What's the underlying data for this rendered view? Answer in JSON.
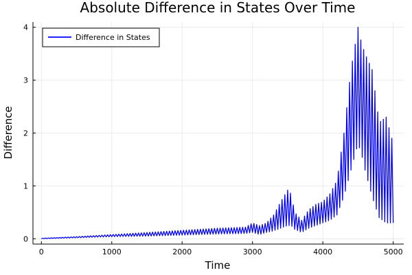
{
  "chart_data": {
    "type": "line",
    "title": "Absolute Difference in States Over Time",
    "xlabel": "Time",
    "ylabel": "Difference",
    "xlim": [
      -120,
      5150
    ],
    "ylim": [
      -0.1,
      4.1
    ],
    "xticks": [
      0,
      1000,
      2000,
      3000,
      4000,
      5000
    ],
    "yticks": [
      0,
      1,
      2,
      3,
      4
    ],
    "grid": true,
    "legend": {
      "placement": "top-left",
      "entries": [
        "Difference in States"
      ]
    },
    "series": [
      {
        "name": "Difference in States",
        "color": "#0000ff",
        "oscillation_period": 40,
        "envelope_x": [
          0,
          500,
          1000,
          1500,
          2000,
          2500,
          2900,
          3000,
          3100,
          3200,
          3300,
          3400,
          3500,
          3550,
          3600,
          3700,
          3800,
          3900,
          4000,
          4100,
          4200,
          4300,
          4400,
          4500,
          4550,
          4600,
          4700,
          4800,
          4900,
          5000
        ],
        "envelope_upper": [
          0.01,
          0.04,
          0.08,
          0.12,
          0.16,
          0.2,
          0.22,
          0.3,
          0.25,
          0.3,
          0.45,
          0.7,
          0.92,
          0.85,
          0.5,
          0.35,
          0.55,
          0.65,
          0.7,
          0.85,
          1.1,
          2.0,
          3.2,
          4.0,
          3.7,
          3.5,
          3.2,
          2.2,
          2.3,
          1.8
        ],
        "envelope_lower": [
          0.0,
          0.02,
          0.04,
          0.05,
          0.07,
          0.09,
          0.1,
          0.12,
          0.08,
          0.12,
          0.15,
          0.2,
          0.25,
          0.25,
          0.18,
          0.12,
          0.2,
          0.25,
          0.3,
          0.35,
          0.45,
          0.8,
          1.3,
          1.8,
          1.6,
          1.3,
          0.8,
          0.4,
          0.3,
          0.3
        ]
      }
    ]
  }
}
